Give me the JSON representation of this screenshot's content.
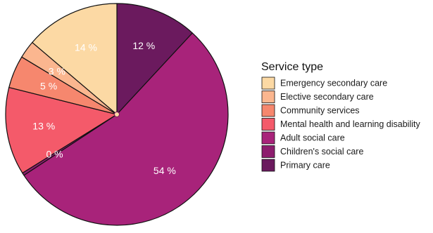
{
  "chart_data": {
    "type": "pie",
    "legend_title": "Service type",
    "legend_position": "right",
    "direction": "counterclockwise from top",
    "slices": [
      {
        "label": "Primary care",
        "value": 12,
        "display": "12 %",
        "color": "#6b1a5e"
      },
      {
        "label": "Adult social care",
        "value": 54.4,
        "display": "54 %",
        "color": "#a8237a"
      },
      {
        "label": "Children's social care",
        "value": 0.4,
        "display": "0 %",
        "color": "#8d1d6e"
      },
      {
        "label": "Mental health and learning disability",
        "value": 12.9,
        "display": "13 %",
        "color": "#f45a6a"
      },
      {
        "label": "Community services",
        "value": 4.8,
        "display": "5 %",
        "color": "#f6876e"
      },
      {
        "label": "Elective secondary care",
        "value": 2.6,
        "display": "3 %",
        "color": "#fbb68f"
      },
      {
        "label": "Emergency secondary care",
        "value": 13.9,
        "display": "14 %",
        "color": "#fcd9a4"
      }
    ],
    "legend_order": [
      "Emergency secondary care",
      "Elective secondary care",
      "Community services",
      "Mental health and learning disability",
      "Adult social care",
      "Children's social care",
      "Primary care"
    ]
  }
}
